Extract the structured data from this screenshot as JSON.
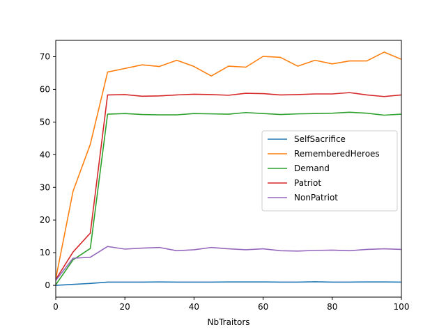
{
  "chart_data": {
    "type": "line",
    "title": "",
    "xlabel": "NbTraitors",
    "ylabel": "",
    "xlim": [
      0,
      100
    ],
    "ylim": [
      -3.6,
      75
    ],
    "x_ticks": [
      0,
      20,
      40,
      60,
      80,
      100
    ],
    "y_ticks": [
      0,
      10,
      20,
      30,
      40,
      50,
      60,
      70
    ],
    "grid": false,
    "legend_position": "center-right",
    "x": [
      0,
      5,
      10,
      15,
      20,
      25,
      30,
      35,
      40,
      45,
      50,
      55,
      60,
      65,
      70,
      75,
      80,
      85,
      90,
      95,
      100
    ],
    "series": [
      {
        "name": "SelfSacrifice",
        "color": "#1f77b4",
        "values": [
          0.0,
          0.3,
          0.6,
          1.0,
          1.0,
          1.0,
          1.05,
          1.0,
          1.0,
          1.0,
          1.05,
          1.05,
          1.05,
          1.0,
          1.0,
          1.1,
          1.0,
          1.0,
          1.05,
          1.05,
          1.0
        ]
      },
      {
        "name": "RememberedHeroes",
        "color": "#ff7f0e",
        "values": [
          2.0,
          28.8,
          43.2,
          65.3,
          66.4,
          67.5,
          67.0,
          68.9,
          67.0,
          64.1,
          67.1,
          66.8,
          70.1,
          69.8,
          67.1,
          68.9,
          67.8,
          68.7,
          68.7,
          71.4,
          69.2
        ]
      },
      {
        "name": "Demand",
        "color": "#2ca02c",
        "values": [
          0.2,
          7.8,
          11.3,
          52.4,
          52.6,
          52.3,
          52.2,
          52.2,
          52.6,
          52.5,
          52.4,
          52.9,
          52.6,
          52.3,
          52.5,
          52.6,
          52.7,
          53.0,
          52.7,
          52.1,
          52.4
        ]
      },
      {
        "name": "Patriot",
        "color": "#d62728",
        "values": [
          1.8,
          10.2,
          16.0,
          58.3,
          58.4,
          57.9,
          58.0,
          58.3,
          58.5,
          58.4,
          58.2,
          58.8,
          58.7,
          58.3,
          58.4,
          58.6,
          58.6,
          59.0,
          58.3,
          57.8,
          58.3
        ]
      },
      {
        "name": "NonPatriot",
        "color": "#9467bd",
        "values": [
          1.5,
          8.3,
          8.6,
          11.9,
          11.1,
          11.4,
          11.6,
          10.6,
          10.9,
          11.6,
          11.2,
          10.9,
          11.2,
          10.6,
          10.5,
          10.7,
          10.8,
          10.6,
          11.0,
          11.2,
          11.0
        ]
      }
    ]
  }
}
